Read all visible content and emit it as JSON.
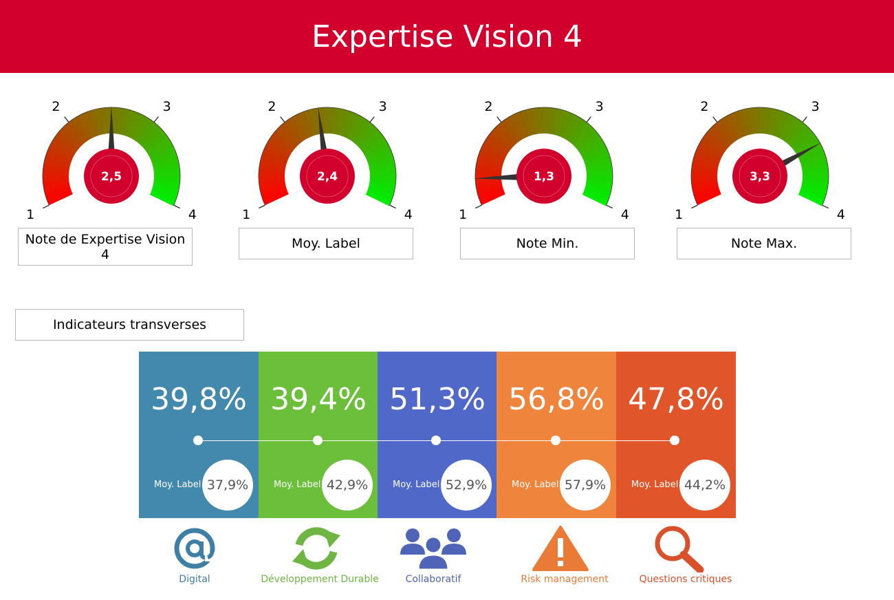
{
  "header": {
    "title": "Expertise Vision 4"
  },
  "gauges": [
    {
      "value_text": "2,5",
      "value": 2.5,
      "label": "Note de Expertise Vision 4",
      "ticks": [
        "1",
        "2",
        "3",
        "4"
      ]
    },
    {
      "value_text": "2,4",
      "value": 2.4,
      "label": "Moy. Label",
      "ticks": [
        "1",
        "2",
        "3",
        "4"
      ]
    },
    {
      "value_text": "1,3",
      "value": 1.3,
      "label": "Note Min.",
      "ticks": [
        "1",
        "2",
        "3",
        "4"
      ]
    },
    {
      "value_text": "3,3",
      "value": 3.3,
      "label": "Note Max.",
      "ticks": [
        "1",
        "2",
        "3",
        "4"
      ]
    }
  ],
  "gauge_colors": {
    "low": "#ff0000",
    "mid": "#7a7a00",
    "high": "#00ee00",
    "center": "#d1002c",
    "needle": "#333333"
  },
  "section": {
    "title": "Indicateurs transverses"
  },
  "indicators": [
    {
      "pct": "39,8%",
      "moy_label": "Moy. Label",
      "moy_value": "37,9%",
      "color": "#4389ad",
      "label": "Digital",
      "label_color": "#3f7fa6",
      "icon": "at-icon"
    },
    {
      "pct": "39,4%",
      "moy_label": "Moy. Label",
      "moy_value": "42,9%",
      "color": "#6bbf3a",
      "label": "Développement Durable",
      "label_color": "#6fb543",
      "icon": "recycle-arrows-icon"
    },
    {
      "pct": "51,3%",
      "moy_label": "Moy. Label",
      "moy_value": "52,9%",
      "color": "#5068c8",
      "label": "Collaboratif",
      "label_color": "#4f63b7",
      "icon": "people-group-icon"
    },
    {
      "pct": "56,8%",
      "moy_label": "Moy. Label",
      "moy_value": "57,9%",
      "color": "#ef843d",
      "label": "Risk management",
      "label_color": "#e97b37",
      "icon": "warning-icon"
    },
    {
      "pct": "47,8%",
      "moy_label": "Moy. Label",
      "moy_value": "44,2%",
      "color": "#e0562a",
      "label": "Questions critiques",
      "label_color": "#d9512b",
      "icon": "magnifier-icon"
    }
  ]
}
